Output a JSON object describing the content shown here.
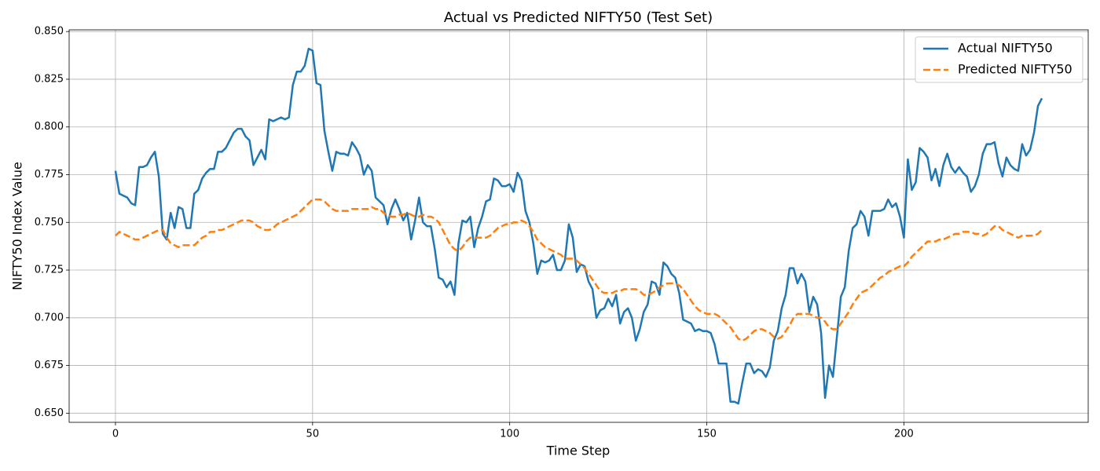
{
  "chart_data": {
    "type": "line",
    "title": "Actual vs Predicted NIFTY50 (Test Set)",
    "xlabel": "Time Step",
    "ylabel": "NIFTY50 Index Value",
    "x": [
      0,
      1,
      2,
      3,
      4,
      5,
      6,
      7,
      8,
      9,
      10,
      11,
      12,
      13,
      14,
      15,
      16,
      17,
      18,
      19,
      20,
      21,
      22,
      23,
      24,
      25,
      26,
      27,
      28,
      29,
      30,
      31,
      32,
      33,
      34,
      35,
      36,
      37,
      38,
      39,
      40,
      41,
      42,
      43,
      44,
      45,
      46,
      47,
      48,
      49,
      50,
      51,
      52,
      53,
      54,
      55,
      56,
      57,
      58,
      59,
      60,
      61,
      62,
      63,
      64,
      65,
      66,
      67,
      68,
      69,
      70,
      71,
      72,
      73,
      74,
      75,
      76,
      77,
      78,
      79,
      80,
      81,
      82,
      83,
      84,
      85,
      86,
      87,
      88,
      89,
      90,
      91,
      92,
      93,
      94,
      95,
      96,
      97,
      98,
      99,
      100,
      101,
      102,
      103,
      104,
      105,
      106,
      107,
      108,
      109,
      110,
      111,
      112,
      113,
      114,
      115,
      116,
      117,
      118,
      119,
      120,
      121,
      122,
      123,
      124,
      125,
      126,
      127,
      128,
      129,
      130,
      131,
      132,
      133,
      134,
      135,
      136,
      137,
      138,
      139,
      140,
      141,
      142,
      143,
      144,
      145,
      146,
      147,
      148,
      149,
      150,
      151,
      152,
      153,
      154,
      155,
      156,
      157,
      158,
      159,
      160,
      161,
      162,
      163,
      164,
      165,
      166,
      167,
      168,
      169,
      170,
      171,
      172,
      173,
      174,
      175,
      176,
      177,
      178,
      179,
      180,
      181,
      182,
      183,
      184,
      185,
      186,
      187,
      188,
      189,
      190,
      191,
      192,
      193,
      194,
      195,
      196,
      197,
      198,
      199,
      200,
      201,
      202,
      203,
      204,
      205,
      206,
      207,
      208,
      209,
      210,
      211,
      212,
      213,
      214,
      215,
      216,
      217,
      218,
      219,
      220,
      221,
      222,
      223,
      224,
      225,
      226,
      227,
      228,
      229,
      230,
      231,
      232,
      233,
      234,
      235
    ],
    "series": [
      {
        "name": "Actual NIFTY50",
        "color": "#1f77b4",
        "linestyle": "solid",
        "values": [
          0.777,
          0.765,
          0.764,
          0.763,
          0.76,
          0.759,
          0.779,
          0.779,
          0.78,
          0.784,
          0.787,
          0.774,
          0.744,
          0.741,
          0.755,
          0.747,
          0.758,
          0.757,
          0.747,
          0.747,
          0.765,
          0.767,
          0.773,
          0.776,
          0.778,
          0.778,
          0.787,
          0.787,
          0.789,
          0.793,
          0.797,
          0.799,
          0.799,
          0.795,
          0.793,
          0.78,
          0.784,
          0.788,
          0.783,
          0.804,
          0.803,
          0.804,
          0.805,
          0.804,
          0.805,
          0.822,
          0.829,
          0.829,
          0.832,
          0.841,
          0.84,
          0.823,
          0.822,
          0.798,
          0.787,
          0.777,
          0.787,
          0.786,
          0.786,
          0.785,
          0.792,
          0.789,
          0.785,
          0.775,
          0.78,
          0.777,
          0.763,
          0.761,
          0.759,
          0.749,
          0.757,
          0.762,
          0.757,
          0.751,
          0.755,
          0.741,
          0.751,
          0.763,
          0.75,
          0.748,
          0.748,
          0.736,
          0.721,
          0.72,
          0.716,
          0.719,
          0.712,
          0.739,
          0.751,
          0.75,
          0.753,
          0.737,
          0.747,
          0.753,
          0.761,
          0.762,
          0.773,
          0.772,
          0.769,
          0.769,
          0.77,
          0.766,
          0.776,
          0.772,
          0.756,
          0.75,
          0.739,
          0.723,
          0.73,
          0.729,
          0.73,
          0.733,
          0.725,
          0.725,
          0.73,
          0.749,
          0.742,
          0.724,
          0.728,
          0.727,
          0.719,
          0.715,
          0.7,
          0.704,
          0.705,
          0.71,
          0.706,
          0.712,
          0.697,
          0.703,
          0.705,
          0.7,
          0.688,
          0.694,
          0.703,
          0.707,
          0.719,
          0.718,
          0.712,
          0.729,
          0.727,
          0.723,
          0.721,
          0.713,
          0.699,
          0.698,
          0.697,
          0.693,
          0.694,
          0.693,
          0.693,
          0.692,
          0.686,
          0.676,
          0.676,
          0.676,
          0.656,
          0.656,
          0.655,
          0.666,
          0.676,
          0.676,
          0.671,
          0.673,
          0.672,
          0.669,
          0.674,
          0.688,
          0.693,
          0.705,
          0.712,
          0.726,
          0.726,
          0.718,
          0.723,
          0.719,
          0.703,
          0.711,
          0.707,
          0.692,
          0.658,
          0.675,
          0.669,
          0.69,
          0.711,
          0.716,
          0.735,
          0.747,
          0.749,
          0.756,
          0.753,
          0.743,
          0.756,
          0.756,
          0.756,
          0.757,
          0.762,
          0.758,
          0.76,
          0.753,
          0.742,
          0.783,
          0.767,
          0.771,
          0.789,
          0.787,
          0.784,
          0.772,
          0.778,
          0.769,
          0.78,
          0.786,
          0.779,
          0.776,
          0.779,
          0.776,
          0.774,
          0.766,
          0.769,
          0.775,
          0.786,
          0.791,
          0.791,
          0.792,
          0.781,
          0.774,
          0.784,
          0.78,
          0.778,
          0.777,
          0.791,
          0.785,
          0.788,
          0.797,
          0.811,
          0.815
        ]
      },
      {
        "name": "Predicted NIFTY50",
        "color": "#ff7f0e",
        "linestyle": "dashed",
        "values": [
          0.743,
          0.745,
          0.744,
          0.743,
          0.742,
          0.741,
          0.741,
          0.742,
          0.743,
          0.744,
          0.745,
          0.746,
          0.746,
          0.742,
          0.739,
          0.738,
          0.737,
          0.738,
          0.738,
          0.738,
          0.738,
          0.74,
          0.742,
          0.743,
          0.745,
          0.745,
          0.746,
          0.746,
          0.747,
          0.748,
          0.749,
          0.75,
          0.751,
          0.751,
          0.751,
          0.75,
          0.748,
          0.747,
          0.746,
          0.746,
          0.747,
          0.749,
          0.75,
          0.751,
          0.752,
          0.753,
          0.754,
          0.756,
          0.758,
          0.76,
          0.762,
          0.762,
          0.762,
          0.761,
          0.759,
          0.757,
          0.756,
          0.756,
          0.756,
          0.756,
          0.757,
          0.757,
          0.757,
          0.757,
          0.757,
          0.758,
          0.757,
          0.757,
          0.755,
          0.754,
          0.753,
          0.753,
          0.754,
          0.754,
          0.755,
          0.754,
          0.753,
          0.753,
          0.754,
          0.753,
          0.753,
          0.752,
          0.75,
          0.746,
          0.742,
          0.738,
          0.736,
          0.735,
          0.737,
          0.74,
          0.742,
          0.742,
          0.742,
          0.742,
          0.742,
          0.743,
          0.745,
          0.747,
          0.748,
          0.749,
          0.749,
          0.75,
          0.75,
          0.751,
          0.75,
          0.748,
          0.745,
          0.741,
          0.739,
          0.737,
          0.736,
          0.735,
          0.734,
          0.733,
          0.731,
          0.731,
          0.731,
          0.73,
          0.728,
          0.726,
          0.723,
          0.72,
          0.717,
          0.714,
          0.713,
          0.713,
          0.713,
          0.714,
          0.714,
          0.715,
          0.715,
          0.715,
          0.715,
          0.714,
          0.712,
          0.712,
          0.713,
          0.714,
          0.716,
          0.717,
          0.718,
          0.718,
          0.718,
          0.717,
          0.715,
          0.712,
          0.709,
          0.706,
          0.704,
          0.703,
          0.702,
          0.702,
          0.702,
          0.701,
          0.699,
          0.697,
          0.695,
          0.692,
          0.689,
          0.688,
          0.689,
          0.691,
          0.693,
          0.694,
          0.694,
          0.693,
          0.692,
          0.69,
          0.689,
          0.69,
          0.693,
          0.696,
          0.7,
          0.702,
          0.702,
          0.702,
          0.702,
          0.701,
          0.7,
          0.7,
          0.698,
          0.695,
          0.694,
          0.694,
          0.697,
          0.7,
          0.703,
          0.707,
          0.71,
          0.713,
          0.714,
          0.715,
          0.717,
          0.719,
          0.721,
          0.722,
          0.724,
          0.725,
          0.726,
          0.727,
          0.727,
          0.729,
          0.732,
          0.734,
          0.736,
          0.738,
          0.74,
          0.74,
          0.74,
          0.741,
          0.741,
          0.742,
          0.743,
          0.744,
          0.744,
          0.745,
          0.745,
          0.745,
          0.744,
          0.744,
          0.743,
          0.744,
          0.746,
          0.748,
          0.748,
          0.746,
          0.745,
          0.744,
          0.743,
          0.742,
          0.743,
          0.743,
          0.743,
          0.743,
          0.744,
          0.746
        ]
      }
    ],
    "xlim": [
      -11.75,
      246.75
    ],
    "xticks": [
      0,
      50,
      100,
      150,
      200
    ],
    "ylim": [
      0.6452,
      0.8509
    ],
    "yticks": [
      {
        "value": 0.65,
        "label": "0.650"
      },
      0.675,
      {
        "value": 0.7,
        "label": "0.700"
      },
      0.725,
      {
        "value": 0.75,
        "label": "0.750"
      },
      0.775,
      {
        "value": 0.8,
        "label": "0.800"
      },
      0.825,
      {
        "value": 0.85,
        "label": "0.850"
      }
    ],
    "grid": true,
    "legend": "upper right"
  }
}
